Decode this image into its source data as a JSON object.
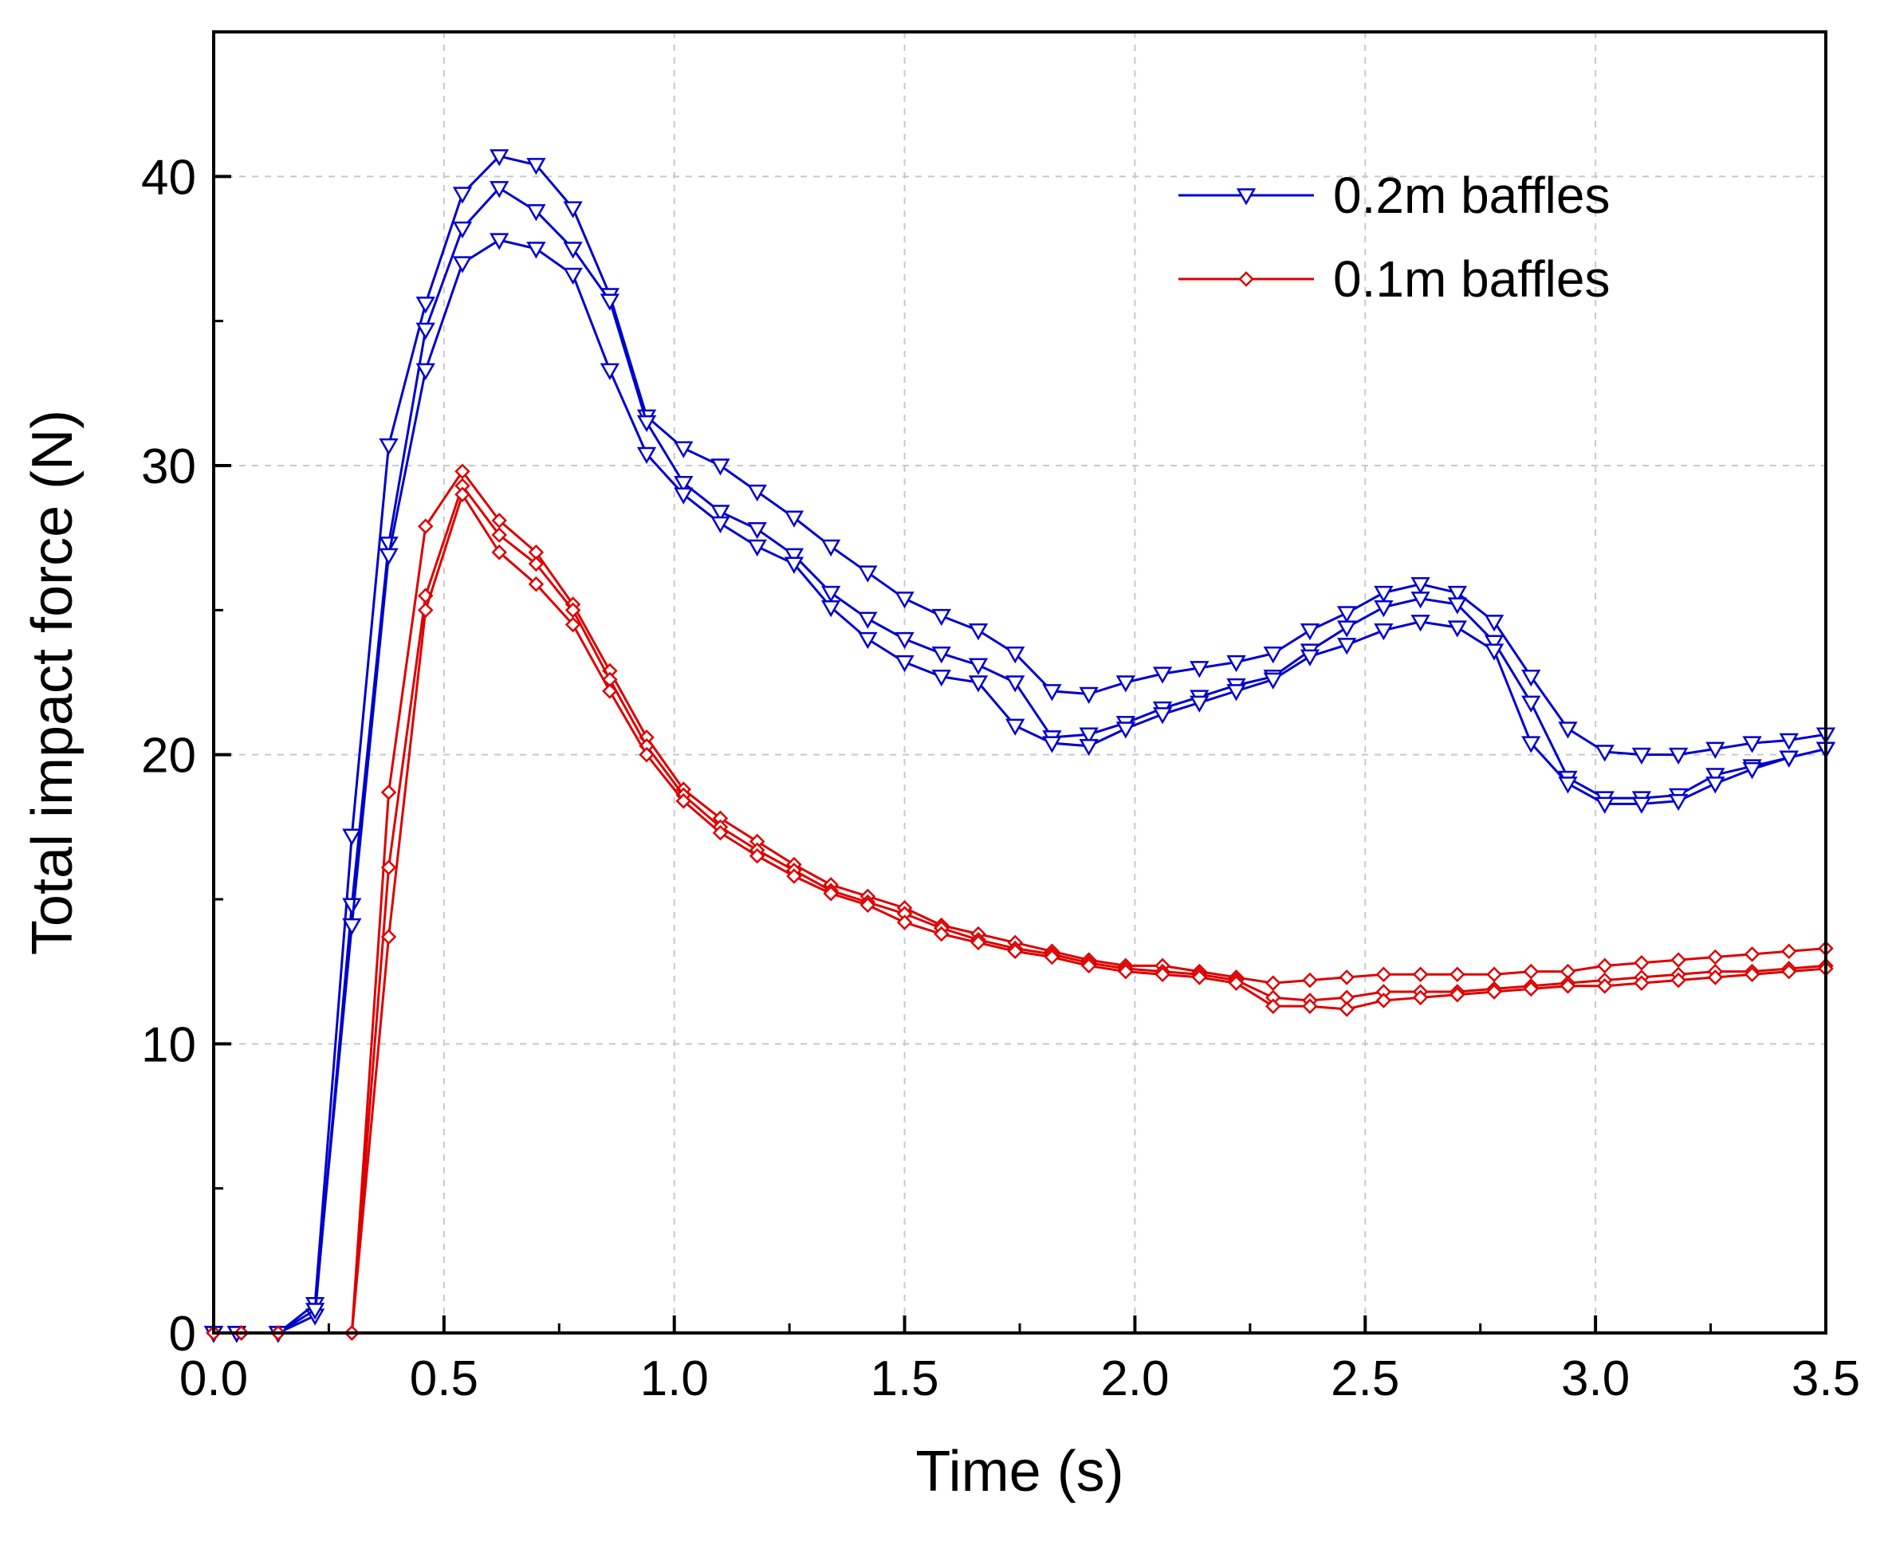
{
  "chart_data": {
    "type": "line",
    "title": "",
    "xlabel": "Time (s)",
    "ylabel": "Total impact force (N)",
    "xlim": [
      0,
      3.5
    ],
    "ylim": [
      0,
      45
    ],
    "xticks": [
      "0.0",
      "0.5",
      "1.0",
      "1.5",
      "2.0",
      "2.5",
      "3.0",
      "3.5"
    ],
    "yticks": [
      "0",
      "10",
      "20",
      "30",
      "40"
    ],
    "grid": true,
    "legend_position": "top-right",
    "legend": [
      {
        "label": "0.2m baffles",
        "color": "#0000cc",
        "marker": "triangle-down"
      },
      {
        "label": "0.1m baffles",
        "color": "#dd0000",
        "marker": "diamond"
      }
    ],
    "series": [
      {
        "name": "0.2m baffles",
        "group": "0.2m baffles",
        "color": "#0000cc",
        "marker": "triangle-down",
        "x": [
          0.0,
          0.05,
          0.14,
          0.22,
          0.3,
          0.38,
          0.46,
          0.54,
          0.62,
          0.7,
          0.78,
          0.86,
          0.94,
          1.02,
          1.1,
          1.18,
          1.26,
          1.34,
          1.42,
          1.5,
          1.58,
          1.66,
          1.74,
          1.82,
          1.9,
          1.98,
          2.06,
          2.14,
          2.22,
          2.3,
          2.38,
          2.46,
          2.54,
          2.62,
          2.7,
          2.78,
          2.86,
          2.94,
          3.02,
          3.1,
          3.18,
          3.26,
          3.34,
          3.42,
          3.5
        ],
        "y": [
          0,
          0,
          0,
          1.0,
          17.2,
          30.7,
          35.6,
          39.4,
          40.7,
          40.4,
          38.9,
          35.9,
          31.7,
          30.6,
          30.0,
          29.1,
          28.2,
          27.2,
          26.3,
          25.4,
          24.8,
          24.3,
          23.5,
          22.2,
          22.1,
          22.5,
          22.8,
          23.0,
          23.2,
          23.5,
          24.3,
          24.9,
          25.6,
          25.9,
          25.6,
          24.6,
          22.7,
          20.9,
          20.1,
          20.0,
          20.0,
          20.2,
          20.4,
          20.5,
          20.7
        ]
      },
      {
        "name": "0.2m baffles",
        "group": "0.2m baffles",
        "color": "#0000cc",
        "marker": "triangle-down",
        "x": [
          0.0,
          0.05,
          0.14,
          0.22,
          0.3,
          0.38,
          0.46,
          0.54,
          0.62,
          0.7,
          0.78,
          0.86,
          0.94,
          1.02,
          1.1,
          1.18,
          1.26,
          1.34,
          1.42,
          1.5,
          1.58,
          1.66,
          1.74,
          1.82,
          1.9,
          1.98,
          2.06,
          2.14,
          2.22,
          2.3,
          2.38,
          2.46,
          2.54,
          2.62,
          2.7,
          2.78,
          2.86,
          2.94,
          3.02,
          3.1,
          3.18,
          3.26,
          3.34,
          3.42,
          3.5
        ],
        "y": [
          0,
          0,
          0,
          0.6,
          14.8,
          27.3,
          34.7,
          38.2,
          39.6,
          38.8,
          37.5,
          35.7,
          31.5,
          29.4,
          28.4,
          27.8,
          26.9,
          25.6,
          24.7,
          24.0,
          23.5,
          23.1,
          22.5,
          20.6,
          20.7,
          21.1,
          21.6,
          22.0,
          22.4,
          22.7,
          23.6,
          24.4,
          25.1,
          25.4,
          25.2,
          23.9,
          21.8,
          19.2,
          18.5,
          18.5,
          18.6,
          19.3,
          19.6,
          19.9,
          20.2
        ]
      },
      {
        "name": "0.2m baffles",
        "group": "0.2m baffles",
        "color": "#0000cc",
        "marker": "triangle-down",
        "x": [
          0.0,
          0.05,
          0.14,
          0.22,
          0.3,
          0.38,
          0.46,
          0.54,
          0.62,
          0.7,
          0.78,
          0.86,
          0.94,
          1.02,
          1.1,
          1.18,
          1.26,
          1.34,
          1.42,
          1.5,
          1.58,
          1.66,
          1.74,
          1.82,
          1.9,
          1.98,
          2.06,
          2.14,
          2.22,
          2.3,
          2.38,
          2.46,
          2.54,
          2.62,
          2.7,
          2.78,
          2.86,
          2.94,
          3.02,
          3.1,
          3.18,
          3.26,
          3.34,
          3.42,
          3.5
        ],
        "y": [
          0,
          0,
          0,
          0.8,
          14.1,
          26.9,
          33.3,
          37.0,
          37.8,
          37.5,
          36.6,
          33.3,
          30.4,
          29.0,
          28.0,
          27.2,
          26.6,
          25.1,
          24.0,
          23.2,
          22.7,
          22.5,
          21.0,
          20.4,
          20.3,
          20.9,
          21.4,
          21.8,
          22.2,
          22.6,
          23.4,
          23.8,
          24.3,
          24.6,
          24.4,
          23.6,
          20.4,
          19.0,
          18.3,
          18.3,
          18.4,
          19.0,
          19.5,
          19.9,
          20.2
        ]
      },
      {
        "name": "0.1m baffles",
        "group": "0.1m baffles",
        "color": "#dd0000",
        "marker": "diamond",
        "x": [
          0.0,
          0.06,
          0.14,
          0.3,
          0.38,
          0.46,
          0.54,
          0.62,
          0.7,
          0.78,
          0.86,
          0.94,
          1.02,
          1.1,
          1.18,
          1.26,
          1.34,
          1.42,
          1.5,
          1.58,
          1.66,
          1.74,
          1.82,
          1.9,
          1.98,
          2.06,
          2.14,
          2.22,
          2.3,
          2.38,
          2.46,
          2.54,
          2.62,
          2.7,
          2.78,
          2.86,
          2.94,
          3.02,
          3.1,
          3.18,
          3.26,
          3.34,
          3.42,
          3.5
        ],
        "y": [
          0,
          0,
          0,
          0,
          18.7,
          27.9,
          29.8,
          28.1,
          27.0,
          25.2,
          22.9,
          20.6,
          18.8,
          17.8,
          17.0,
          16.2,
          15.5,
          15.1,
          14.7,
          14.1,
          13.8,
          13.5,
          13.2,
          12.9,
          12.7,
          12.7,
          12.5,
          12.3,
          12.1,
          12.2,
          12.3,
          12.4,
          12.4,
          12.4,
          12.4,
          12.5,
          12.5,
          12.7,
          12.8,
          12.9,
          13.0,
          13.1,
          13.2,
          13.3
        ]
      },
      {
        "name": "0.1m baffles",
        "group": "0.1m baffles",
        "color": "#dd0000",
        "marker": "diamond",
        "x": [
          0.0,
          0.06,
          0.14,
          0.3,
          0.38,
          0.46,
          0.54,
          0.62,
          0.7,
          0.78,
          0.86,
          0.94,
          1.02,
          1.1,
          1.18,
          1.26,
          1.34,
          1.42,
          1.5,
          1.58,
          1.66,
          1.74,
          1.82,
          1.9,
          1.98,
          2.06,
          2.14,
          2.22,
          2.3,
          2.38,
          2.46,
          2.54,
          2.62,
          2.7,
          2.78,
          2.86,
          2.94,
          3.02,
          3.1,
          3.18,
          3.26,
          3.34,
          3.42,
          3.5
        ],
        "y": [
          0,
          0,
          0,
          0,
          16.1,
          25.5,
          29.3,
          27.6,
          26.6,
          25.0,
          22.6,
          20.3,
          18.6,
          17.5,
          16.7,
          16.0,
          15.3,
          14.9,
          14.5,
          14.0,
          13.6,
          13.3,
          13.1,
          12.8,
          12.6,
          12.5,
          12.4,
          12.2,
          11.6,
          11.5,
          11.6,
          11.8,
          11.8,
          11.8,
          11.9,
          12.0,
          12.1,
          12.2,
          12.3,
          12.4,
          12.5,
          12.5,
          12.6,
          12.7
        ]
      },
      {
        "name": "0.1m baffles",
        "group": "0.1m baffles",
        "color": "#dd0000",
        "marker": "diamond",
        "x": [
          0.0,
          0.06,
          0.14,
          0.3,
          0.38,
          0.46,
          0.54,
          0.62,
          0.7,
          0.78,
          0.86,
          0.94,
          1.02,
          1.1,
          1.18,
          1.26,
          1.34,
          1.42,
          1.5,
          1.58,
          1.66,
          1.74,
          1.82,
          1.9,
          1.98,
          2.06,
          2.14,
          2.22,
          2.3,
          2.38,
          2.46,
          2.54,
          2.62,
          2.7,
          2.78,
          2.86,
          2.94,
          3.02,
          3.1,
          3.18,
          3.26,
          3.34,
          3.42,
          3.5
        ],
        "y": [
          0,
          0,
          0,
          0,
          13.7,
          25.0,
          29.0,
          27.0,
          25.9,
          24.5,
          22.2,
          20.0,
          18.4,
          17.3,
          16.5,
          15.8,
          15.2,
          14.8,
          14.2,
          13.8,
          13.5,
          13.2,
          13.0,
          12.7,
          12.5,
          12.4,
          12.3,
          12.1,
          11.3,
          11.3,
          11.2,
          11.5,
          11.6,
          11.7,
          11.8,
          11.9,
          12.0,
          12.0,
          12.1,
          12.2,
          12.3,
          12.4,
          12.5,
          12.6
        ]
      }
    ]
  }
}
